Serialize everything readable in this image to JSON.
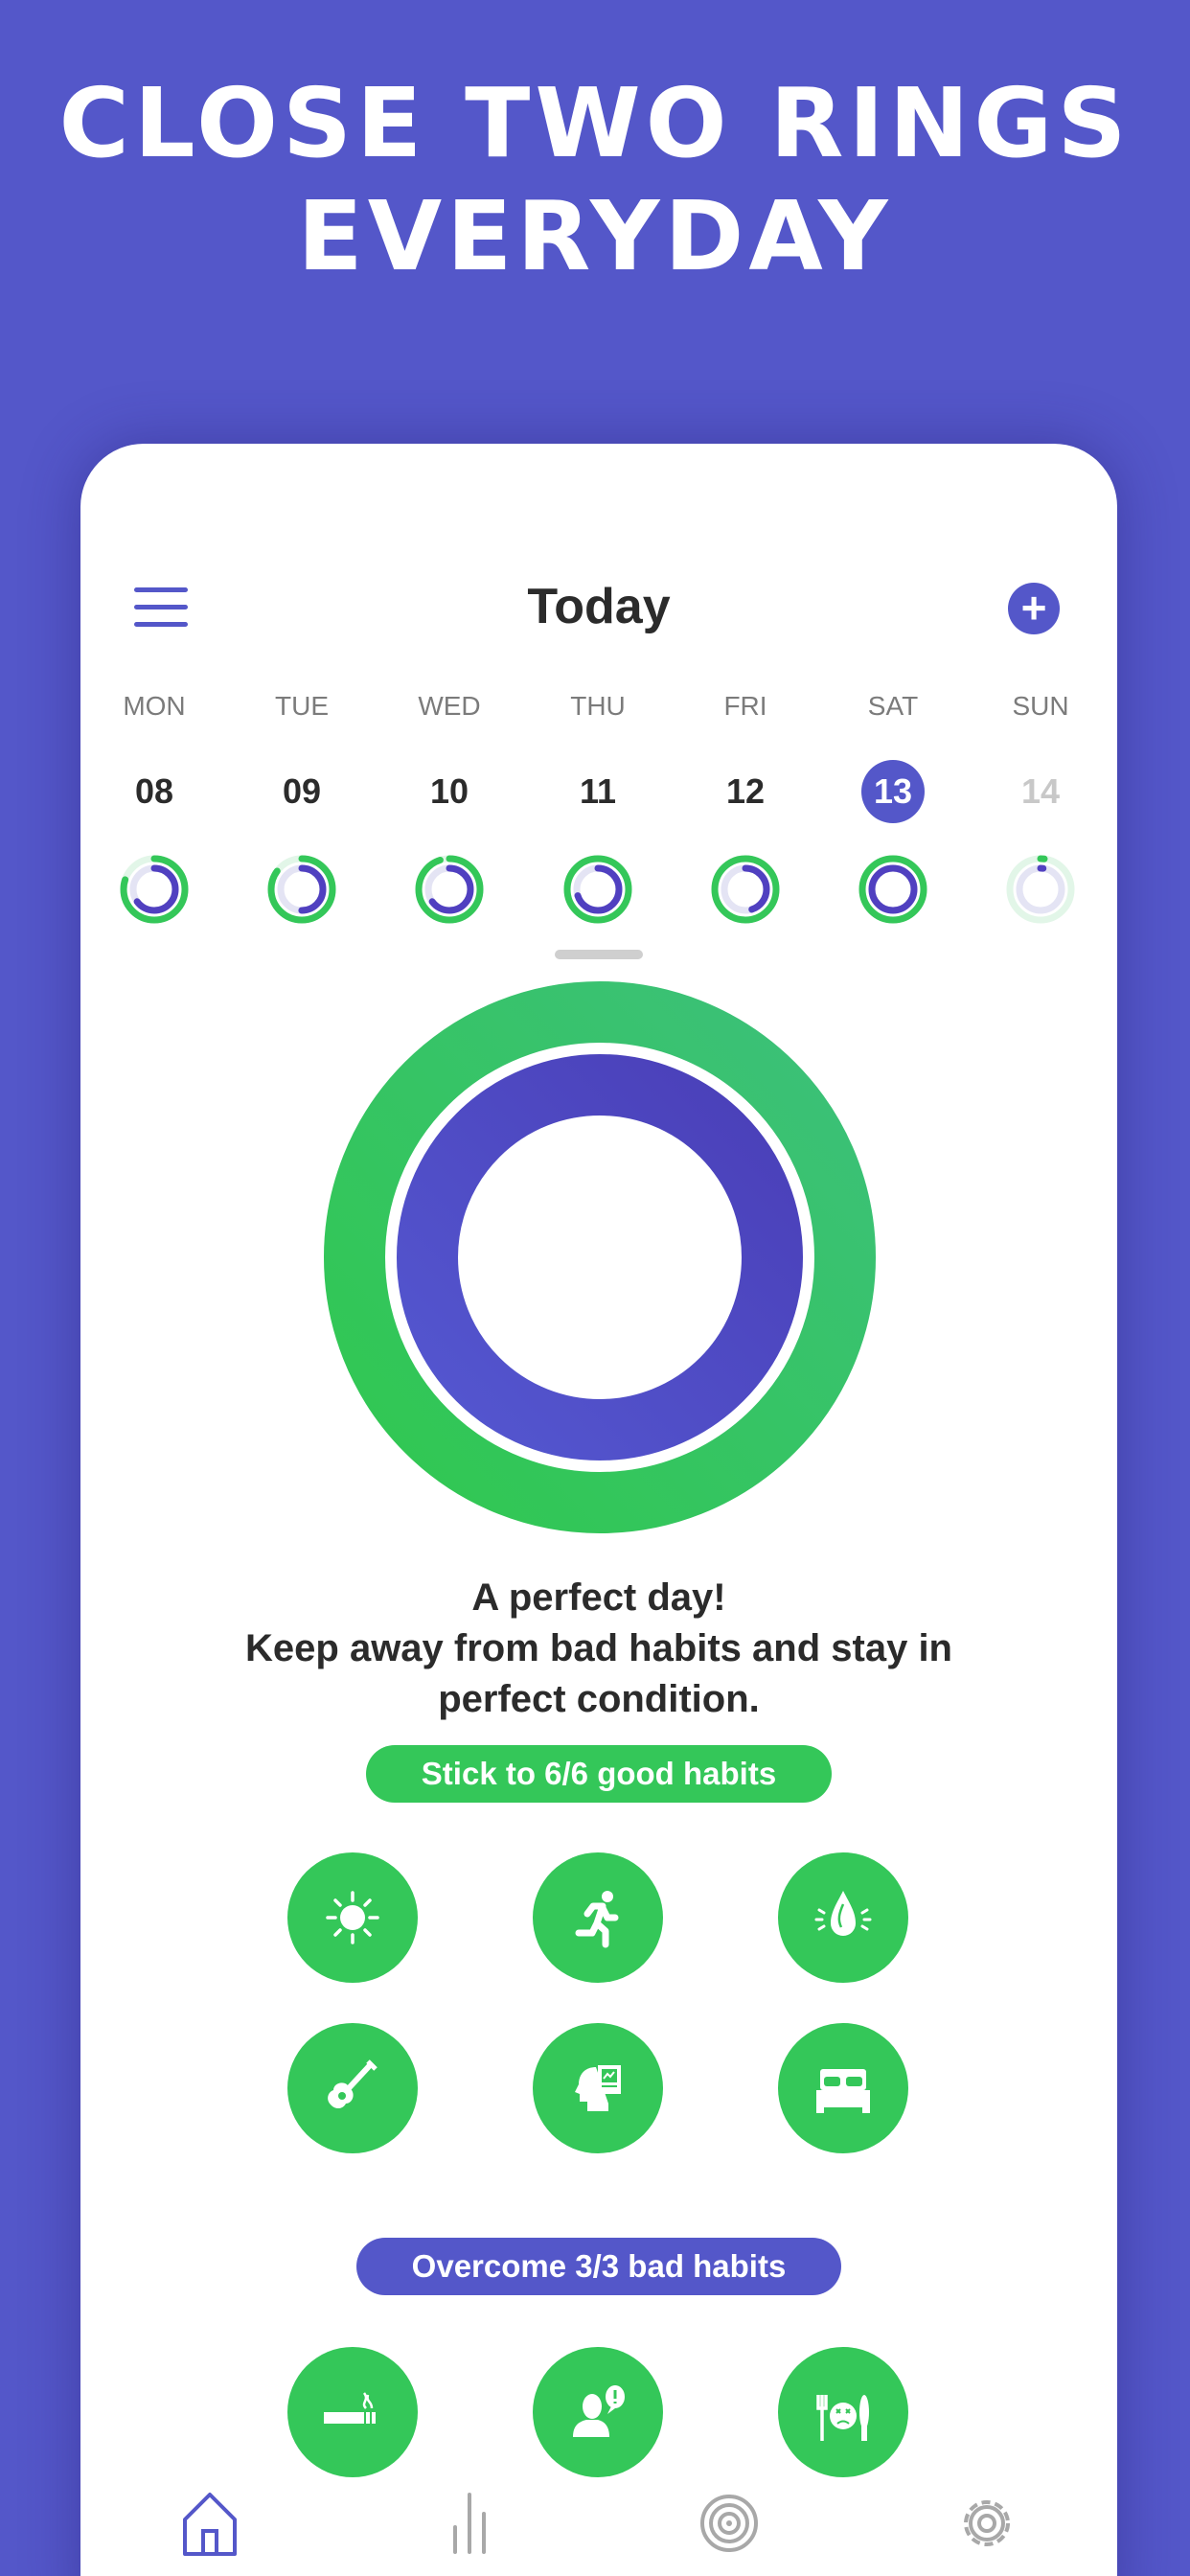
{
  "headline": {
    "line1": "CLOSE TWO RINGS",
    "line2": "EVERYDAY"
  },
  "header": {
    "title": "Today",
    "menu_icon": "hamburger-icon",
    "add_icon": "plus-icon"
  },
  "colors": {
    "background": "#5457c9",
    "accent_purple": "#5457c9",
    "accent_green": "#34c759"
  },
  "week": [
    {
      "day": "MON",
      "date": "08",
      "good_progress": 0.8,
      "bad_progress": 0.65,
      "state": "past"
    },
    {
      "day": "TUE",
      "date": "09",
      "good_progress": 0.85,
      "bad_progress": 0.5,
      "state": "past"
    },
    {
      "day": "WED",
      "date": "10",
      "good_progress": 0.95,
      "bad_progress": 0.65,
      "state": "past"
    },
    {
      "day": "THU",
      "date": "11",
      "good_progress": 1,
      "bad_progress": 0.7,
      "state": "past"
    },
    {
      "day": "FRI",
      "date": "12",
      "good_progress": 1,
      "bad_progress": 0.45,
      "state": "past"
    },
    {
      "day": "SAT",
      "date": "13",
      "good_progress": 1,
      "bad_progress": 1,
      "state": "selected"
    },
    {
      "day": "SUN",
      "date": "14",
      "good_progress": 0.02,
      "bad_progress": 0.02,
      "state": "future"
    }
  ],
  "today_rings": {
    "good_progress": 1,
    "bad_progress": 1
  },
  "message": {
    "line1": "A perfect day!",
    "line2": "Keep away from bad habits and stay in",
    "line3": "perfect condition."
  },
  "good_habits": {
    "label": "Stick to 6/6 good habits",
    "icons": [
      "sun-icon",
      "running-icon",
      "water-drop-icon",
      "guitar-icon",
      "head-learning-icon",
      "bed-icon"
    ]
  },
  "bad_habits": {
    "label": "Overcome 3/3 bad habits",
    "icons": [
      "cigarette-icon",
      "person-speech-icon",
      "sick-food-icon"
    ]
  },
  "tabbar": {
    "items": [
      {
        "icon": "home-icon",
        "active": true
      },
      {
        "icon": "stats-icon",
        "active": false
      },
      {
        "icon": "target-icon",
        "active": false
      },
      {
        "icon": "settings-icon",
        "active": false
      }
    ]
  }
}
